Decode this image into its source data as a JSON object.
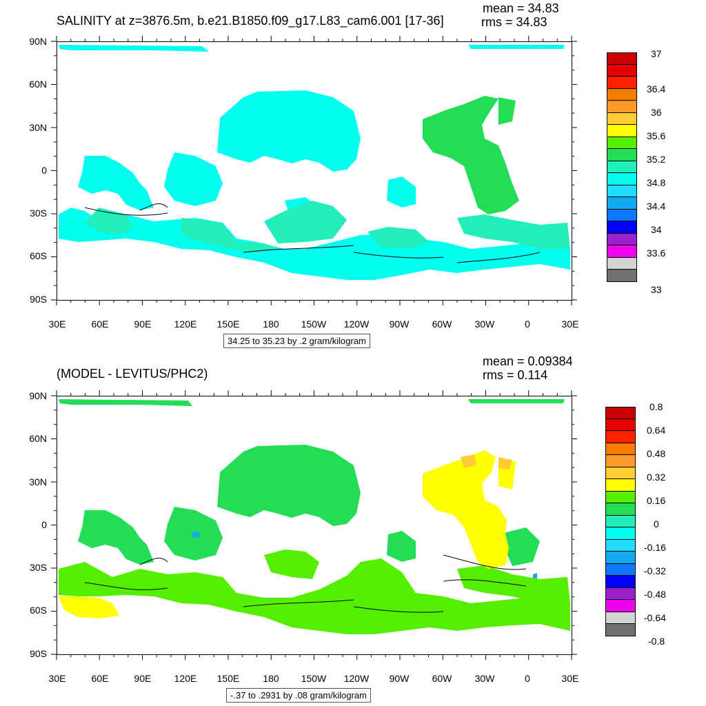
{
  "panels": [
    {
      "title": "SALINITY at z=3876.5m, b.e21.B1850.f09_g17.L83_cam6.001 [17-36]",
      "mean_label": "mean = 34.83",
      "rms_label": "rms = 34.83",
      "lat_labels": [
        "90N",
        "60N",
        "30N",
        "0",
        "30S",
        "60S",
        "90S"
      ],
      "lon_labels": [
        "30E",
        "60E",
        "90E",
        "120E",
        "150E",
        "180",
        "150W",
        "120W",
        "90W",
        "60W",
        "30W",
        "0",
        "30E"
      ],
      "contour_info": "34.25 to 35.23 by .2 gram/kilogram",
      "colorbar": {
        "labels": [
          "37",
          "36.4",
          "36",
          "35.6",
          "35.2",
          "34.8",
          "34.4",
          "34",
          "33.6",
          "33"
        ],
        "colors": [
          "#c80000",
          "#e60000",
          "#ff2000",
          "#f67d00",
          "#ff9a2a",
          "#ffcc33",
          "#ffff00",
          "#55ee00",
          "#22dd55",
          "#22eebb",
          "#00ffee",
          "#22ddff",
          "#11aaee",
          "#1177ff",
          "#0000ff",
          "#9922cc",
          "#ee00ee",
          "#d3d3d3",
          "#707070"
        ]
      }
    },
    {
      "title": "(MODEL - LEVITUS/PHC2)",
      "mean_label": "mean = 0.09384",
      "rms_label": "rms = 0.114",
      "lat_labels": [
        "90N",
        "60N",
        "30N",
        "0",
        "30S",
        "60S",
        "90S"
      ],
      "lon_labels": [
        "30E",
        "60E",
        "90E",
        "120E",
        "150E",
        "180",
        "150W",
        "120W",
        "90W",
        "60W",
        "30W",
        "0",
        "30E"
      ],
      "contour_info": "-.37 to .2931 by .08 gram/kilogram",
      "colorbar": {
        "labels": [
          "0.8",
          "0.64",
          "0.48",
          "0.32",
          "0.16",
          "0",
          "-0.16",
          "-0.32",
          "-0.48",
          "-0.64",
          "-0.8"
        ],
        "colors": [
          "#c80000",
          "#e60000",
          "#ff2000",
          "#f67d00",
          "#ff9a2a",
          "#ffcc33",
          "#ffff00",
          "#55ee00",
          "#22dd55",
          "#22eebb",
          "#00ffee",
          "#22ddff",
          "#11aaee",
          "#1177ff",
          "#0000ff",
          "#9922cc",
          "#ee00ee",
          "#d3d3d3",
          "#707070"
        ]
      }
    }
  ],
  "map_colors": {
    "top_main": "#00ffee",
    "top_secondary": "#22eebb",
    "top_atlantic": "#22dd55",
    "bottom_main": "#22dd55",
    "bottom_south": "#55ee00",
    "bottom_atlantic": "#ffff00",
    "bottom_orange": "#ffcc33",
    "bottom_blue": "#11aaee"
  }
}
